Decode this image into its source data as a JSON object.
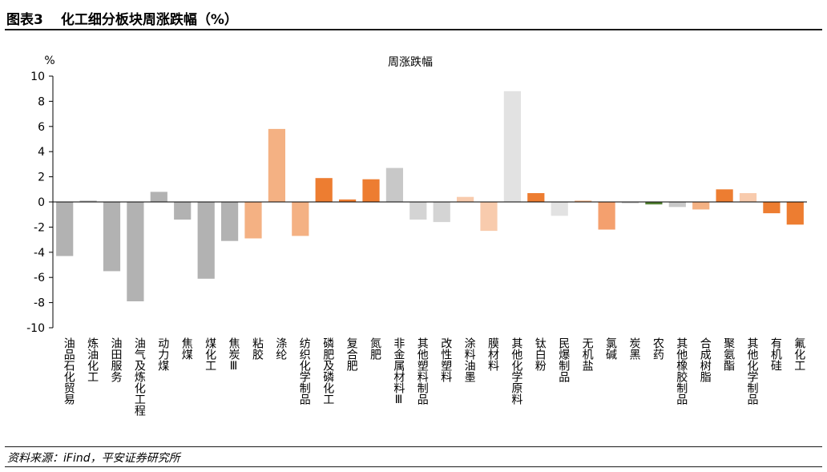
{
  "figure": {
    "number": "图表3",
    "title": "化工细分板块周涨跌幅（%）",
    "source": "资料来源：iFind，平安证券研究所"
  },
  "chart_data": {
    "type": "bar",
    "title": "周涨跌幅",
    "ylabel": "%",
    "ylim": [
      -10,
      10
    ],
    "yticks": [
      10,
      8,
      6,
      4,
      2,
      0,
      -2,
      -4,
      -6,
      -8,
      -10
    ],
    "grid": false,
    "categories": [
      "油品石化贸易",
      "炼油化工",
      "油田服务",
      "油气及炼化工程",
      "动力煤",
      "焦煤",
      "煤化工",
      "焦炭Ⅲ",
      "粘胶",
      "涤纶",
      "纺织化学制品",
      "磷肥及磷化工",
      "复合肥",
      "氮肥",
      "非金属材料Ⅲ",
      "其他塑料制品",
      "改性塑料",
      "涂料油墨",
      "膜材料",
      "其他化学原料",
      "钛白粉",
      "民爆制品",
      "无机盐",
      "氯碱",
      "炭黑",
      "农药",
      "其他橡胶制品",
      "合成树脂",
      "聚氨酯",
      "其他化学制品",
      "有机硅",
      "氟化工"
    ],
    "values": [
      -4.3,
      0.1,
      -5.5,
      -7.9,
      0.8,
      -1.4,
      -6.1,
      -3.1,
      -2.9,
      5.8,
      -2.7,
      1.9,
      0.2,
      1.8,
      2.7,
      -1.4,
      -1.6,
      0.4,
      -2.3,
      8.8,
      0.7,
      -1.1,
      0.1,
      -2.2,
      -0.1,
      -0.2,
      -0.4,
      -0.6,
      1.0,
      0.7,
      -0.9,
      -1.8
    ],
    "colors": [
      "#b2b2b2",
      "#b2b2b2",
      "#b2b2b2",
      "#b2b2b2",
      "#b2b2b2",
      "#b2b2b2",
      "#b2b2b2",
      "#b2b2b2",
      "#f4b183",
      "#f4b183",
      "#f4b183",
      "#ed7d31",
      "#ed7d31",
      "#ed7d31",
      "#c8c8c8",
      "#d4d4d4",
      "#d4d4d4",
      "#f8cbad",
      "#f8cbad",
      "#e2e2e2",
      "#ed7d31",
      "#e2e2e2",
      "#f4b183",
      "#f4a06e",
      "#c8c8c8",
      "#548235",
      "#c8c8c8",
      "#f4b183",
      "#ed7d31",
      "#f8cbad",
      "#ed7d31",
      "#ed7d31"
    ]
  }
}
